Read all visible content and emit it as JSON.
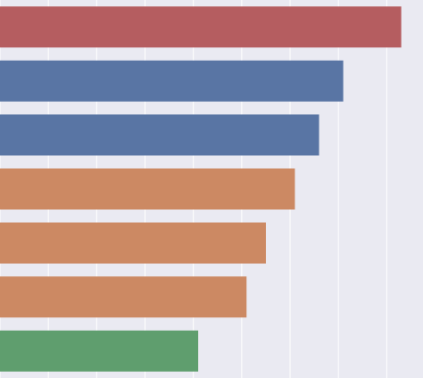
{
  "chart_data": {
    "type": "bar",
    "orientation": "horizontal",
    "categories": [
      null,
      null,
      null,
      null,
      null,
      null,
      null
    ],
    "values": [
      8.3,
      7.1,
      6.6,
      6.1,
      5.5,
      5.1,
      4.1
    ],
    "colors": [
      "#b55d60",
      "#5975a4",
      "#5975a4",
      "#cc8963",
      "#cc8963",
      "#cc8963",
      "#5f9e6e"
    ],
    "xlim": [
      0,
      8.75
    ],
    "xticks": [
      0,
      1,
      2,
      3,
      4,
      5,
      6,
      7,
      8
    ],
    "grid": true
  }
}
